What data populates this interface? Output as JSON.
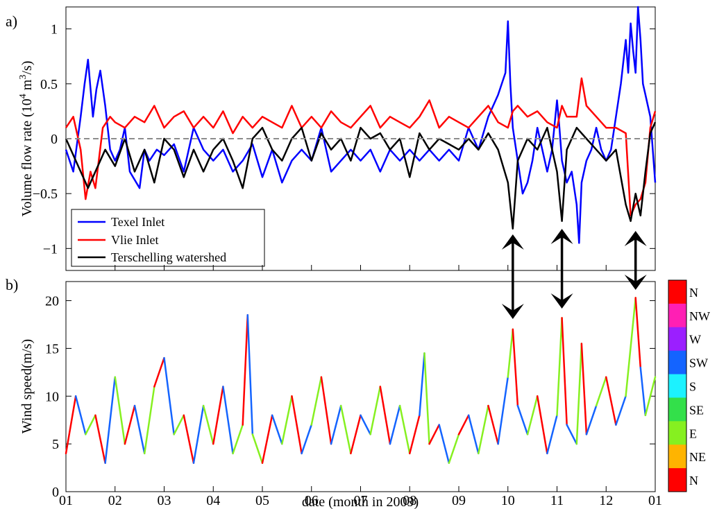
{
  "figure": {
    "xlabel": "date (month in 2009)",
    "x_tick_labels": [
      "01",
      "02",
      "03",
      "04",
      "05",
      "06",
      "07",
      "08",
      "09",
      "10",
      "11",
      "12",
      "01"
    ]
  },
  "colors": {
    "Texel Inlet": "#0000ff",
    "Vlie Inlet": "#ff0000",
    "Terschelling watershed": "#000000",
    "zero_line": "#8c8c8c",
    "arrows": "#000000"
  },
  "chart_data": [
    {
      "panel": "a)",
      "type": "line",
      "ylabel_main": "Volume flow rate (10",
      "ylabel_sup1": "4",
      "ylabel_mid": " m",
      "ylabel_sup2": "3",
      "ylabel_end": "/s)",
      "xlim": [
        0,
        12
      ],
      "ylim": [
        -1.2,
        1.2
      ],
      "y_ticks": [
        -1,
        -0.5,
        0,
        0.5,
        1
      ],
      "y_tick_labels": [
        "−1",
        "−0.5",
        "0",
        "0.5",
        "1"
      ],
      "zero_line": 0,
      "legend_position": "bottom-left",
      "series": [
        {
          "name": "Texel Inlet",
          "x": [
            0,
            0.15,
            0.3,
            0.38,
            0.45,
            0.55,
            0.62,
            0.7,
            0.8,
            0.9,
            1.0,
            1.1,
            1.2,
            1.3,
            1.5,
            1.6,
            1.7,
            1.85,
            2.0,
            2.2,
            2.4,
            2.6,
            2.8,
            3.0,
            3.2,
            3.4,
            3.6,
            3.8,
            4.0,
            4.2,
            4.4,
            4.6,
            4.8,
            5.0,
            5.2,
            5.4,
            5.6,
            5.8,
            6.0,
            6.2,
            6.4,
            6.6,
            6.8,
            7.0,
            7.2,
            7.4,
            7.6,
            7.8,
            8.0,
            8.2,
            8.4,
            8.6,
            8.8,
            8.95,
            9.0,
            9.05,
            9.1,
            9.2,
            9.3,
            9.4,
            9.5,
            9.6,
            9.7,
            9.8,
            9.9,
            10.0,
            10.05,
            10.1,
            10.2,
            10.3,
            10.4,
            10.45,
            10.5,
            10.6,
            10.7,
            10.8,
            10.9,
            11.0,
            11.1,
            11.2,
            11.3,
            11.4,
            11.45,
            11.5,
            11.55,
            11.6,
            11.65,
            11.7,
            11.75,
            11.8,
            11.9,
            12.0
          ],
          "values": [
            -0.1,
            -0.3,
            0.2,
            0.5,
            0.72,
            0.2,
            0.45,
            0.62,
            0.3,
            -0.1,
            -0.2,
            -0.1,
            0.1,
            -0.3,
            -0.45,
            -0.1,
            -0.2,
            -0.1,
            -0.15,
            -0.05,
            -0.3,
            0.1,
            -0.1,
            -0.2,
            -0.1,
            -0.3,
            -0.2,
            -0.05,
            -0.35,
            -0.1,
            -0.4,
            -0.2,
            -0.1,
            -0.2,
            0.1,
            -0.3,
            -0.2,
            -0.1,
            -0.2,
            -0.1,
            -0.3,
            -0.1,
            -0.2,
            -0.1,
            -0.2,
            -0.1,
            -0.2,
            -0.1,
            -0.2,
            0.1,
            -0.1,
            0.2,
            0.4,
            0.6,
            1.07,
            0.5,
            0.1,
            -0.2,
            -0.5,
            -0.4,
            -0.2,
            0.1,
            -0.1,
            -0.3,
            -0.1,
            0.35,
            0.1,
            -0.2,
            -0.4,
            -0.3,
            -0.6,
            -0.95,
            -0.4,
            -0.2,
            -0.1,
            0.1,
            -0.1,
            -0.2,
            -0.1,
            0.2,
            0.5,
            0.9,
            0.6,
            1.05,
            0.8,
            0.6,
            1.2,
            0.9,
            0.5,
            0.4,
            0.2,
            -0.4
          ]
        },
        {
          "name": "Vlie Inlet",
          "x": [
            0,
            0.15,
            0.3,
            0.4,
            0.5,
            0.6,
            0.75,
            0.9,
            1.0,
            1.2,
            1.4,
            1.6,
            1.8,
            2.0,
            2.2,
            2.4,
            2.6,
            2.8,
            3.0,
            3.2,
            3.4,
            3.6,
            3.8,
            4.0,
            4.2,
            4.4,
            4.6,
            4.8,
            5.0,
            5.2,
            5.4,
            5.6,
            5.8,
            6.0,
            6.2,
            6.4,
            6.6,
            6.8,
            7.0,
            7.2,
            7.4,
            7.6,
            7.8,
            8.0,
            8.2,
            8.4,
            8.6,
            8.8,
            9.0,
            9.1,
            9.2,
            9.4,
            9.6,
            9.8,
            10.0,
            10.1,
            10.2,
            10.4,
            10.5,
            10.6,
            10.8,
            11.0,
            11.2,
            11.4,
            11.5,
            11.6,
            11.7,
            11.8,
            11.9,
            12.0
          ],
          "values": [
            0.1,
            0.2,
            -0.1,
            -0.55,
            -0.3,
            -0.45,
            0.1,
            0.2,
            0.15,
            0.1,
            0.2,
            0.15,
            0.3,
            0.1,
            0.2,
            0.25,
            0.1,
            0.2,
            0.1,
            0.25,
            0.05,
            0.2,
            0.1,
            0.2,
            0.15,
            0.1,
            0.3,
            0.1,
            0.2,
            0.1,
            0.25,
            0.15,
            0.1,
            0.2,
            0.3,
            0.1,
            0.2,
            0.15,
            0.1,
            0.2,
            0.35,
            0.1,
            0.2,
            0.15,
            0.1,
            0.2,
            0.3,
            0.15,
            0.1,
            0.25,
            0.3,
            0.2,
            0.25,
            0.15,
            0.1,
            0.3,
            0.2,
            0.2,
            0.55,
            0.3,
            0.2,
            0.1,
            0.1,
            0.05,
            -0.7,
            -0.6,
            -0.55,
            -0.4,
            0.1,
            0.25
          ]
        },
        {
          "name": "Terschelling watershed",
          "x": [
            0,
            0.2,
            0.35,
            0.45,
            0.6,
            0.8,
            1.0,
            1.2,
            1.4,
            1.6,
            1.8,
            2.0,
            2.2,
            2.4,
            2.6,
            2.8,
            3.0,
            3.2,
            3.4,
            3.6,
            3.8,
            4.0,
            4.2,
            4.4,
            4.6,
            4.8,
            5.0,
            5.2,
            5.4,
            5.6,
            5.8,
            6.0,
            6.2,
            6.4,
            6.6,
            6.8,
            7.0,
            7.2,
            7.4,
            7.6,
            7.8,
            8.0,
            8.2,
            8.4,
            8.6,
            8.8,
            9.0,
            9.1,
            9.2,
            9.4,
            9.6,
            9.8,
            10.0,
            10.1,
            10.2,
            10.4,
            10.6,
            10.8,
            11.0,
            11.2,
            11.4,
            11.5,
            11.6,
            11.7,
            11.8,
            11.9,
            12.0
          ],
          "values": [
            0.0,
            -0.2,
            -0.35,
            -0.45,
            -0.3,
            -0.1,
            -0.25,
            0.0,
            -0.3,
            -0.1,
            -0.4,
            0.0,
            -0.1,
            -0.35,
            -0.1,
            -0.3,
            -0.1,
            0.0,
            -0.2,
            -0.45,
            0.0,
            0.1,
            -0.1,
            -0.2,
            0.0,
            0.1,
            -0.2,
            0.05,
            -0.1,
            0.0,
            -0.2,
            0.1,
            0.0,
            0.05,
            -0.1,
            0.0,
            -0.35,
            0.05,
            -0.1,
            0.0,
            -0.05,
            -0.1,
            0.0,
            -0.1,
            0.05,
            -0.1,
            -0.4,
            -0.82,
            -0.2,
            0.0,
            -0.1,
            0.1,
            -0.3,
            -0.75,
            -0.1,
            0.1,
            0.0,
            -0.1,
            -0.2,
            -0.1,
            -0.6,
            -0.75,
            -0.5,
            -0.7,
            -0.3,
            0.05,
            0.15
          ]
        }
      ]
    },
    {
      "panel": "b)",
      "type": "line",
      "ylabel": "Wind speed(m/s)",
      "xlim": [
        0,
        12
      ],
      "ylim": [
        0,
        22
      ],
      "y_ticks": [
        0,
        5,
        10,
        15,
        20
      ],
      "y_tick_labels": [
        "0",
        "5",
        "10",
        "15",
        "20"
      ],
      "colorbar": {
        "labels": [
          "N",
          "NW",
          "W",
          "SW",
          "S",
          "SE",
          "E",
          "NE",
          "N"
        ],
        "colors": [
          "#ff0000",
          "#ff1fb4",
          "#9b1fff",
          "#1464ff",
          "#1cf2ff",
          "#33e04a",
          "#86f020",
          "#ffb400",
          "#ff0000"
        ]
      },
      "series": [
        {
          "x": [
            0,
            0.2,
            0.4,
            0.6,
            0.8,
            1.0,
            1.2,
            1.4,
            1.6,
            1.8,
            2.0,
            2.2,
            2.4,
            2.6,
            2.8,
            3.0,
            3.2,
            3.4,
            3.6,
            3.7,
            3.8,
            4.0,
            4.2,
            4.4,
            4.6,
            4.8,
            5.0,
            5.2,
            5.4,
            5.6,
            5.8,
            6.0,
            6.2,
            6.4,
            6.6,
            6.8,
            7.0,
            7.2,
            7.3,
            7.4,
            7.6,
            7.8,
            8.0,
            8.2,
            8.4,
            8.6,
            8.8,
            9.0,
            9.1,
            9.2,
            9.4,
            9.6,
            9.8,
            10.0,
            10.1,
            10.2,
            10.4,
            10.5,
            10.6,
            10.8,
            11.0,
            11.2,
            11.4,
            11.6,
            11.7,
            11.8,
            12.0
          ],
          "values": [
            4,
            10,
            6,
            8,
            3,
            12,
            5,
            9,
            4,
            11,
            14,
            6,
            8,
            3,
            9,
            5,
            11,
            4,
            7,
            18.5,
            6,
            3,
            8,
            5,
            10,
            4,
            7,
            12,
            5,
            9,
            4,
            8,
            6,
            11,
            5,
            9,
            4,
            8,
            14.5,
            5,
            7,
            3,
            6,
            8,
            4,
            9,
            5,
            12,
            17,
            9,
            6,
            10,
            4,
            8,
            18.2,
            7,
            5,
            15.5,
            6,
            9,
            12,
            7,
            10,
            20.3,
            13,
            8,
            12
          ]
        }
      ]
    }
  ]
}
